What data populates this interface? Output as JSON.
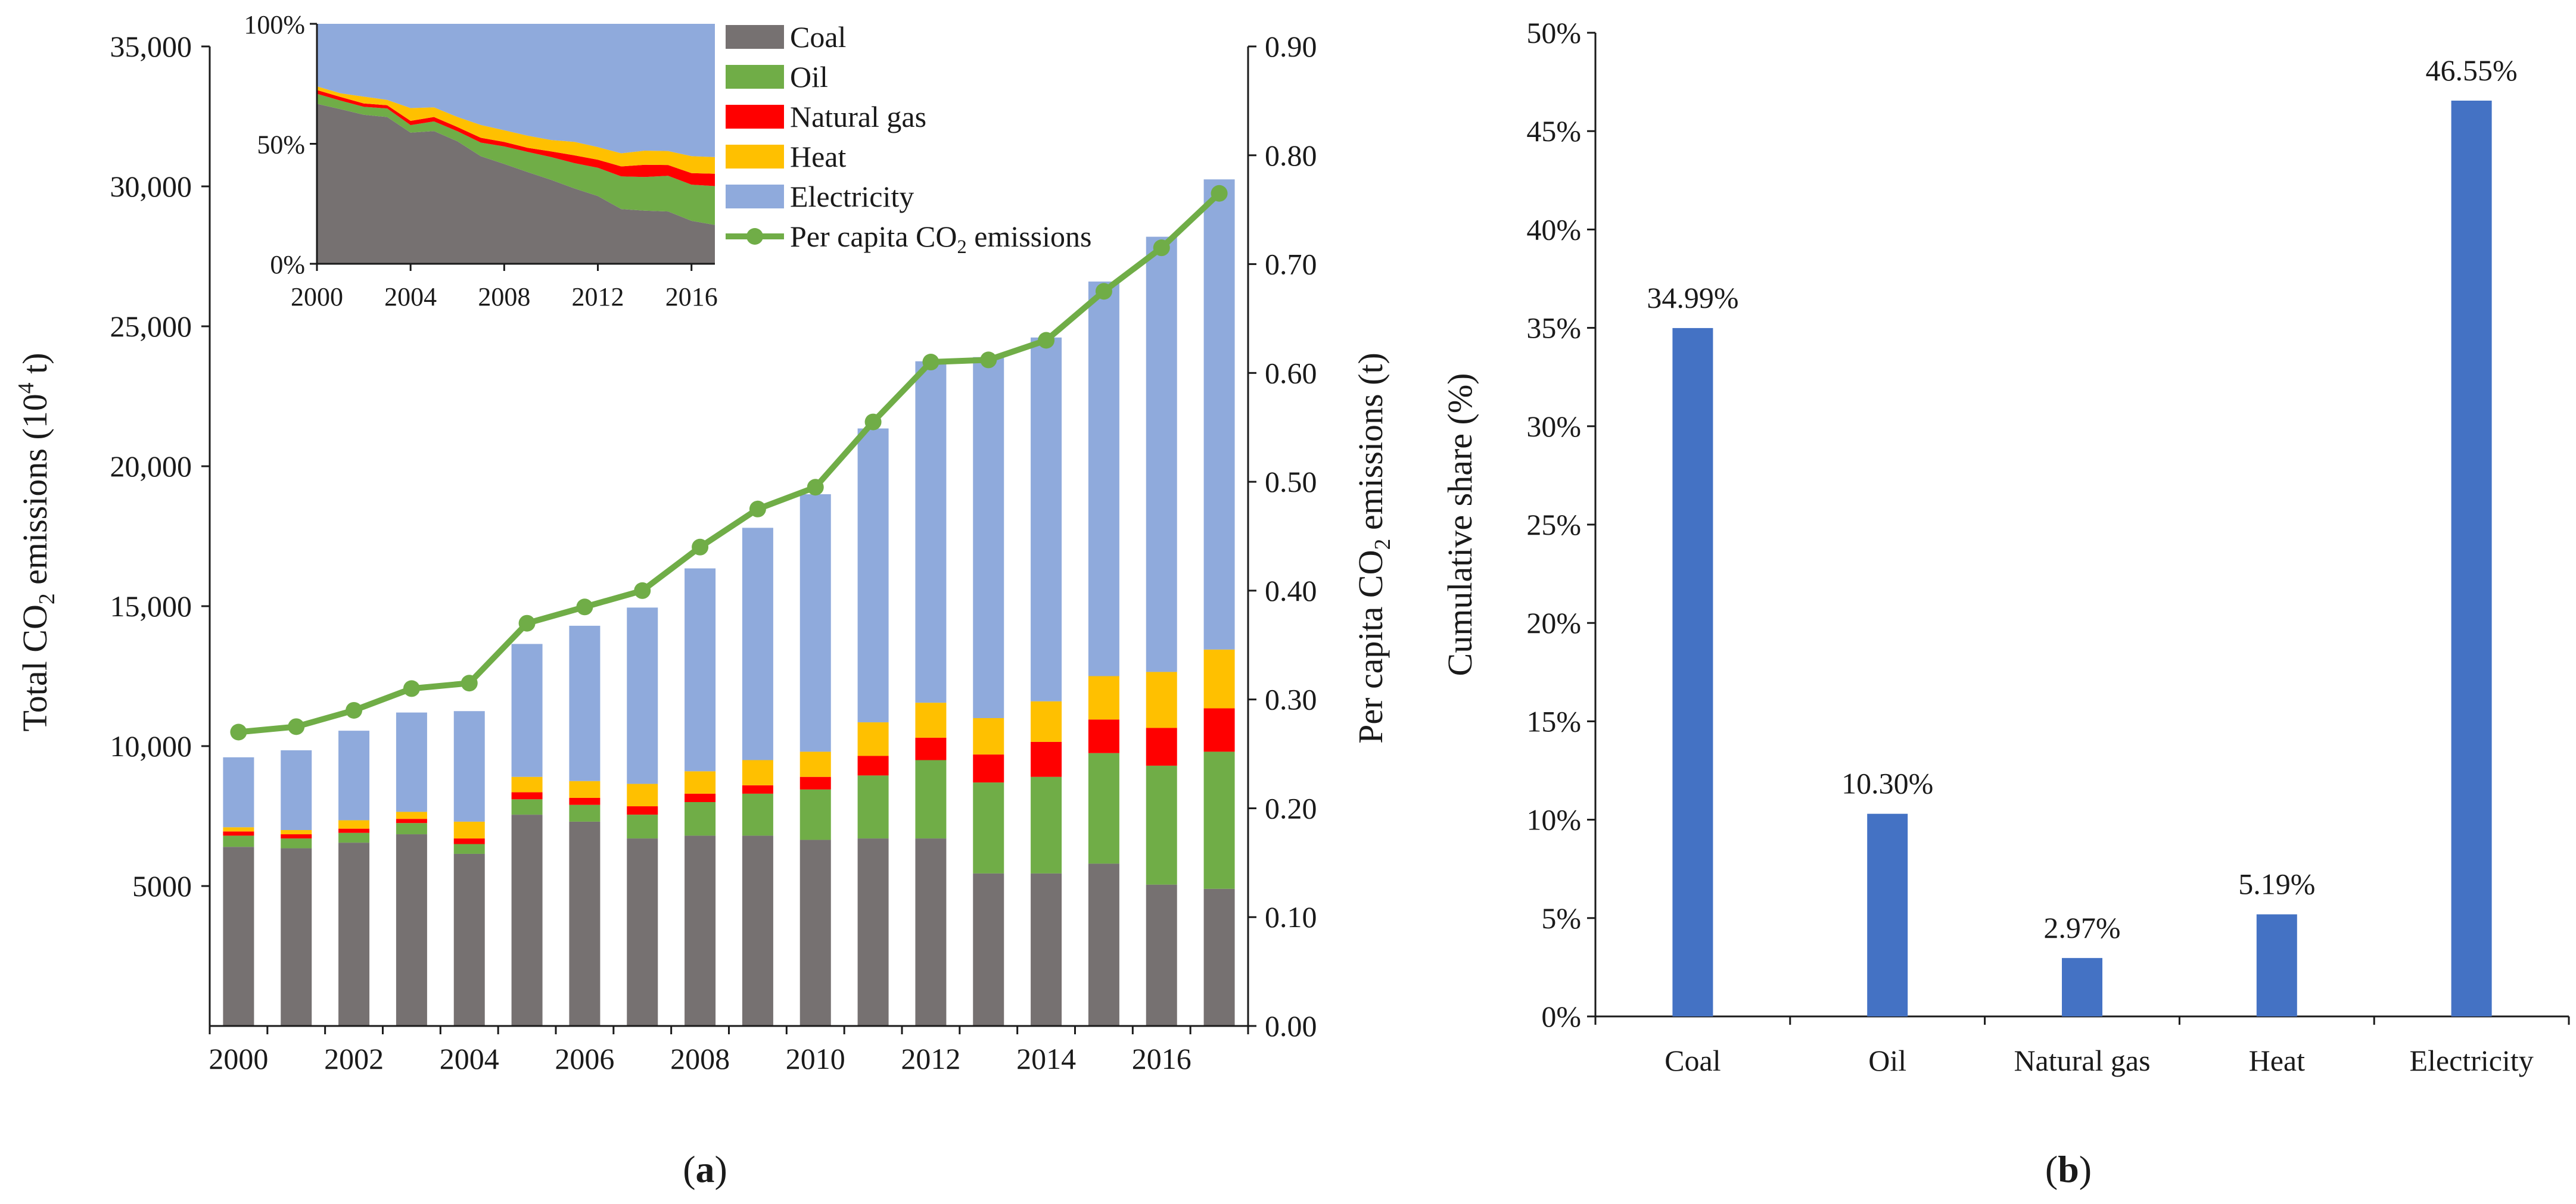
{
  "chart_data": [
    {
      "panel_label": "a",
      "type": "bar",
      "stacked": true,
      "x": [
        "2000",
        "2001",
        "2002",
        "2003",
        "2004",
        "2005",
        "2006",
        "2007",
        "2008",
        "2009",
        "2010",
        "2011",
        "2012",
        "2013",
        "2014",
        "2015",
        "2016",
        "2017"
      ],
      "x_tick_labels": [
        "2000",
        "2002",
        "2004",
        "2006",
        "2008",
        "2010",
        "2012",
        "2014",
        "2016"
      ],
      "ylabel": "Total CO2 emissions (10^4 t)",
      "ylim": [
        0,
        35000
      ],
      "y_ticks": [
        5000,
        10000,
        15000,
        20000,
        25000,
        30000,
        35000
      ],
      "y_tick_labels": [
        "5000",
        "10,000",
        "15,000",
        "20,000",
        "25,000",
        "30,000",
        "35,000"
      ],
      "y2label": "Per capita CO2 emissions (t)",
      "y2lim": [
        0,
        0.9
      ],
      "y2_ticks": [
        0,
        0.1,
        0.2,
        0.3,
        0.4,
        0.5,
        0.6,
        0.7,
        0.8,
        0.9
      ],
      "y2_tick_labels": [
        "0.00",
        "0.10",
        "0.20",
        "0.30",
        "0.40",
        "0.50",
        "0.60",
        "0.70",
        "0.80",
        "0.90"
      ],
      "series": [
        {
          "name": "Coal",
          "color": "#767171",
          "values": [
            6400,
            6350,
            6550,
            6850,
            6150,
            7550,
            7300,
            6700,
            6800,
            6800,
            6650,
            6700,
            6700,
            5450,
            5450,
            5800,
            5050,
            4900
          ]
        },
        {
          "name": "Oil",
          "color": "#70ad47",
          "values": [
            400,
            350,
            350,
            400,
            350,
            550,
            600,
            850,
            1200,
            1500,
            1800,
            2250,
            2800,
            3250,
            3450,
            3950,
            4250,
            4900
          ]
        },
        {
          "name": "Natural gas",
          "color": "#ff0000",
          "values": [
            150,
            150,
            150,
            150,
            200,
            250,
            250,
            300,
            300,
            300,
            450,
            700,
            800,
            1000,
            1250,
            1200,
            1350,
            1550
          ]
        },
        {
          "name": "Heat",
          "color": "#ffc000",
          "values": [
            150,
            150,
            300,
            250,
            600,
            550,
            600,
            800,
            800,
            900,
            900,
            1200,
            1250,
            1300,
            1450,
            1550,
            2000,
            2100
          ]
        },
        {
          "name": "Electricity",
          "color": "#8faadc",
          "values": [
            2500,
            2850,
            3200,
            3550,
            3950,
            4750,
            5550,
            6300,
            7250,
            8300,
            9200,
            10500,
            12200,
            12900,
            13000,
            14100,
            15550,
            16800
          ]
        }
      ],
      "line_series": {
        "name": "Per capita CO2 emissions",
        "color": "#70ad47",
        "axis": "y2",
        "values": [
          0.27,
          0.275,
          0.29,
          0.31,
          0.315,
          0.37,
          0.385,
          0.4,
          0.44,
          0.475,
          0.495,
          0.555,
          0.61,
          0.612,
          0.63,
          0.675,
          0.715,
          0.765
        ]
      },
      "legend_placement": "top-right",
      "inset": {
        "type": "area",
        "stacked_percent": true,
        "x_tick_labels": [
          "2000",
          "2004",
          "2008",
          "2012",
          "2016"
        ],
        "y_tick_labels": [
          "0%",
          "50%",
          "100%"
        ],
        "ylim": [
          0,
          100
        ]
      }
    },
    {
      "panel_label": "b",
      "type": "bar",
      "categories": [
        "Coal",
        "Oil",
        "Natural gas",
        "Heat",
        "Electricity"
      ],
      "values": [
        34.99,
        10.3,
        2.97,
        5.19,
        46.55
      ],
      "data_labels": [
        "34.99%",
        "10.30%",
        "2.97%",
        "5.19%",
        "46.55%"
      ],
      "color": "#4472c4",
      "ylabel": "Cumulative share (%)",
      "ylim": [
        0,
        50
      ],
      "y_ticks": [
        0,
        5,
        10,
        15,
        20,
        25,
        30,
        35,
        40,
        45,
        50
      ],
      "y_tick_labels": [
        "0%",
        "5%",
        "10%",
        "15%",
        "20%",
        "25%",
        "30%",
        "35%",
        "40%",
        "45%",
        "50%"
      ]
    }
  ]
}
